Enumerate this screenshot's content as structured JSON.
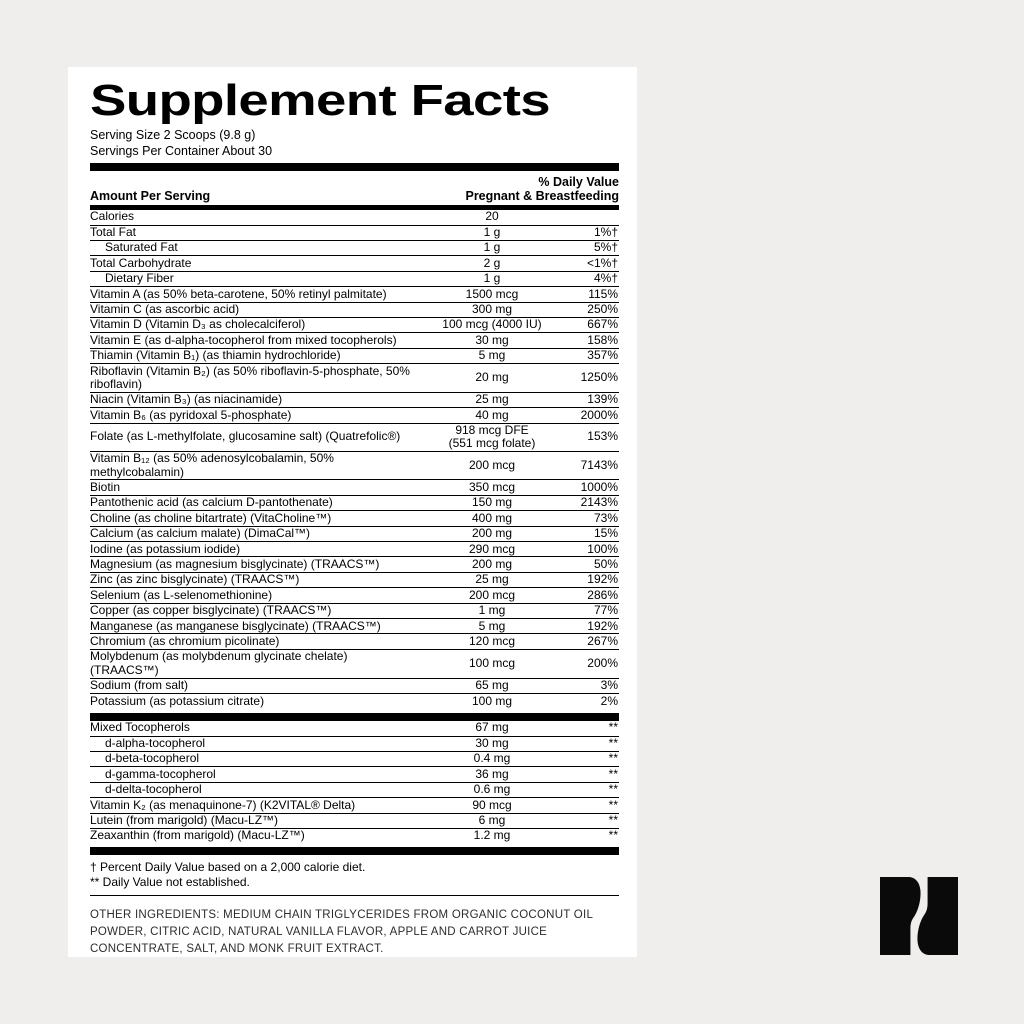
{
  "page": {
    "background": "#efeeec",
    "card_background": "#ffffff",
    "ink": "#000000"
  },
  "label": {
    "title": "Supplement Facts",
    "serving_size": "Serving Size 2 Scoops (9.8 g)",
    "servings_per_container": "Servings Per Container About 30",
    "column_header_left": "Amount Per Serving",
    "column_header_right_line1": "% Daily Value",
    "column_header_right_line2": "Pregnant & Breastfeeding",
    "sections": [
      {
        "rows": [
          {
            "name": "Calories",
            "amount": "20",
            "pct": ""
          },
          {
            "name": "Total Fat",
            "amount": "1 g",
            "pct": "1%†"
          },
          {
            "name": "Saturated Fat",
            "amount": "1 g",
            "pct": "5%†",
            "indent": true
          },
          {
            "name": "Total Carbohydrate",
            "amount": "2 g",
            "pct": "<1%†"
          },
          {
            "name": "Dietary Fiber",
            "amount": "1 g",
            "pct": "4%†",
            "indent": true
          },
          {
            "name": "Vitamin A (as 50% beta-carotene, 50% retinyl palmitate)",
            "amount": "1500 mcg",
            "pct": "115%"
          },
          {
            "name": "Vitamin C (as ascorbic acid)",
            "amount": "300 mg",
            "pct": "250%"
          },
          {
            "name": "Vitamin D (Vitamin D₃ as cholecalciferol)",
            "amount": "100 mcg (4000 IU)",
            "pct": "667%"
          },
          {
            "name": "Vitamin E (as d-alpha-tocopherol from mixed tocopherols)",
            "amount": "30 mg",
            "pct": "158%"
          },
          {
            "name": "Thiamin (Vitamin B₁) (as thiamin hydrochloride)",
            "amount": "5 mg",
            "pct": "357%"
          },
          {
            "name": "Riboflavin (Vitamin B₂) (as 50% riboflavin-5-phosphate, 50% riboflavin)",
            "amount": "20 mg",
            "pct": "1250%"
          },
          {
            "name": "Niacin (Vitamin B₃) (as niacinamide)",
            "amount": "25 mg",
            "pct": "139%"
          },
          {
            "name": "Vitamin B₆ (as pyridoxal 5-phosphate)",
            "amount": "40 mg",
            "pct": "2000%"
          },
          {
            "name": "Folate (as L-methylfolate, glucosamine salt) (Quatrefolic®)",
            "amount": "918 mcg DFE\n(551 mcg folate)",
            "pct": "153%"
          },
          {
            "name": "Vitamin B₁₂ (as 50% adenosylcobalamin, 50% methylcobalamin)",
            "amount": "200 mcg",
            "pct": "7143%"
          },
          {
            "name": "Biotin",
            "amount": "350 mcg",
            "pct": "1000%"
          },
          {
            "name": "Pantothenic acid (as calcium D-pantothenate)",
            "amount": "150 mg",
            "pct": "2143%"
          },
          {
            "name": "Choline (as choline bitartrate) (VitaCholine™)",
            "amount": "400 mg",
            "pct": "73%"
          },
          {
            "name": "Calcium (as calcium malate) (DimaCal™)",
            "amount": "200 mg",
            "pct": "15%"
          },
          {
            "name": "Iodine (as potassium iodide)",
            "amount": "290 mcg",
            "pct": "100%"
          },
          {
            "name": "Magnesium (as magnesium bisglycinate) (TRAACS™)",
            "amount": "200 mg",
            "pct": "50%"
          },
          {
            "name": "Zinc (as zinc bisglycinate) (TRAACS™)",
            "amount": "25 mg",
            "pct": "192%"
          },
          {
            "name": "Selenium (as L-selenomethionine)",
            "amount": "200 mcg",
            "pct": "286%"
          },
          {
            "name": "Copper (as copper bisglycinate) (TRAACS™)",
            "amount": "1 mg",
            "pct": "77%"
          },
          {
            "name": "Manganese (as manganese bisglycinate) (TRAACS™)",
            "amount": "5 mg",
            "pct": "192%"
          },
          {
            "name": "Chromium (as chromium picolinate)",
            "amount": "120 mcg",
            "pct": "267%"
          },
          {
            "name": "Molybdenum (as molybdenum glycinate chelate) (TRAACS™)",
            "amount": "100 mcg",
            "pct": "200%"
          },
          {
            "name": "Sodium (from salt)",
            "amount": "65 mg",
            "pct": "3%"
          },
          {
            "name": "Potassium (as potassium citrate)",
            "amount": "100 mg",
            "pct": "2%"
          }
        ]
      },
      {
        "rows": [
          {
            "name": "Mixed Tocopherols",
            "amount": "67 mg",
            "pct": "**"
          },
          {
            "name": "d-alpha-tocopherol",
            "amount": "30 mg",
            "pct": "**",
            "indent": true
          },
          {
            "name": "d-beta-tocopherol",
            "amount": "0.4 mg",
            "pct": "**",
            "indent": true
          },
          {
            "name": "d-gamma-tocopherol",
            "amount": "36 mg",
            "pct": "**",
            "indent": true
          },
          {
            "name": "d-delta-tocopherol",
            "amount": "0.6 mg",
            "pct": "**",
            "indent": true
          },
          {
            "name": "Vitamin K₂ (as menaquinone-7) (K2VITAL® Delta)",
            "amount": "90 mcg",
            "pct": "**"
          },
          {
            "name": "Lutein (from marigold) (Macu-LZ™)",
            "amount": "6 mg",
            "pct": "**"
          },
          {
            "name": "Zeaxanthin (from marigold) (Macu-LZ™)",
            "amount": "1.2 mg",
            "pct": "**"
          }
        ]
      }
    ],
    "footnotes": [
      "† Percent Daily Value based on a 2,000 calorie diet.",
      "** Daily Value not established."
    ],
    "other_ingredients": "OTHER INGREDIENTS: MEDIUM CHAIN TRIGLYCERIDES FROM ORGANIC COCONUT OIL POWDER, CITRIC ACID, NATURAL VANILLA FLAVOR, APPLE AND CARROT JUICE CONCENTRATE, SALT, AND MONK FRUIT EXTRACT."
  },
  "logo": {
    "glyph": "N",
    "color": "#0a0a0a"
  }
}
